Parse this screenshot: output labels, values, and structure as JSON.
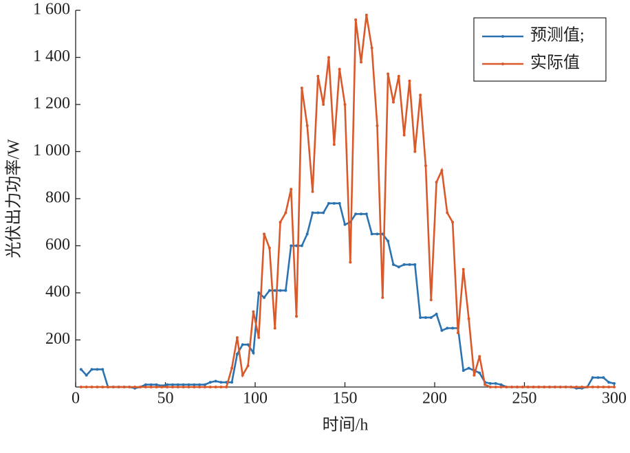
{
  "chart_data": {
    "type": "line",
    "xlabel": "时间/h",
    "ylabel": "光伏出力功率/W",
    "xlim": [
      0,
      300
    ],
    "ylim": [
      0,
      1600
    ],
    "xticks": [
      0,
      50,
      100,
      150,
      200,
      250,
      300
    ],
    "yticks": [
      200,
      400,
      600,
      800,
      {
        "value": 1000,
        "label": "1 000"
      },
      {
        "value": 1200,
        "label": "1 200"
      },
      {
        "value": 1400,
        "label": "1 400"
      },
      {
        "value": 1600,
        "label": "1 600"
      }
    ],
    "legend": "upper right",
    "x": [
      3,
      6,
      9,
      12,
      15,
      18,
      21,
      24,
      27,
      30,
      33,
      36,
      39,
      42,
      45,
      48,
      51,
      54,
      57,
      60,
      63,
      66,
      69,
      72,
      75,
      78,
      81,
      84,
      87,
      90,
      93,
      96,
      99,
      102,
      105,
      108,
      111,
      114,
      117,
      120,
      123,
      126,
      129,
      132,
      135,
      138,
      141,
      144,
      147,
      150,
      153,
      156,
      159,
      162,
      165,
      168,
      171,
      174,
      177,
      180,
      183,
      186,
      189,
      192,
      195,
      198,
      201,
      204,
      207,
      210,
      213,
      216,
      219,
      222,
      225,
      228,
      231,
      234,
      237,
      240,
      243,
      246,
      249,
      252,
      255,
      258,
      261,
      264,
      267,
      270,
      273,
      276,
      279,
      282,
      285,
      288,
      291,
      294,
      297,
      300
    ],
    "series": [
      {
        "name": "预测值;",
        "color": "#2b72b0",
        "values": [
          75,
          50,
          75,
          75,
          75,
          0,
          0,
          0,
          0,
          0,
          -5,
          0,
          10,
          10,
          10,
          5,
          10,
          10,
          10,
          10,
          10,
          10,
          10,
          10,
          20,
          25,
          20,
          20,
          20,
          140,
          180,
          180,
          145,
          400,
          380,
          410,
          410,
          410,
          410,
          600,
          600,
          600,
          650,
          740,
          740,
          740,
          780,
          780,
          780,
          690,
          700,
          735,
          735,
          735,
          650,
          650,
          650,
          620,
          520,
          510,
          520,
          520,
          520,
          295,
          295,
          295,
          310,
          240,
          250,
          250,
          250,
          70,
          80,
          70,
          60,
          20,
          15,
          15,
          10,
          0,
          0,
          0,
          0,
          0,
          0,
          0,
          0,
          0,
          0,
          0,
          0,
          0,
          -5,
          -5,
          0,
          40,
          40,
          40,
          20,
          15
        ]
      },
      {
        "name": "实际值",
        "color": "#d9592a",
        "values": [
          0,
          0,
          0,
          0,
          0,
          0,
          0,
          0,
          0,
          0,
          0,
          0,
          0,
          0,
          0,
          0,
          0,
          0,
          0,
          0,
          0,
          0,
          0,
          0,
          0,
          0,
          0,
          0,
          80,
          210,
          50,
          90,
          320,
          210,
          650,
          590,
          250,
          700,
          740,
          840,
          300,
          1270,
          1110,
          830,
          1320,
          1200,
          1400,
          1030,
          1350,
          1200,
          530,
          1560,
          1380,
          1580,
          1440,
          1110,
          380,
          1330,
          1210,
          1320,
          1070,
          1300,
          1000,
          1240,
          940,
          370,
          870,
          920,
          740,
          700,
          230,
          500,
          290,
          50,
          130,
          10,
          0,
          0,
          0,
          0,
          0,
          0,
          0,
          0,
          0,
          0,
          0,
          0,
          0,
          0,
          0,
          0,
          0,
          0,
          0,
          0,
          0,
          0,
          0,
          0
        ]
      }
    ]
  }
}
